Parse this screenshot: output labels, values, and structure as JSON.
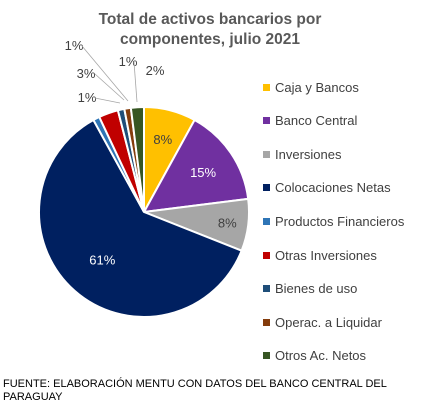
{
  "chart_data": {
    "type": "pie",
    "title_lines": [
      "Total de activos bancarios por",
      "componentes, julio 2021"
    ],
    "slices": [
      {
        "label": "Caja y Bancos",
        "value": 8,
        "value_label": "8%",
        "color": "#FFC000"
      },
      {
        "label": "Banco Central",
        "value": 15,
        "value_label": "15%",
        "color": "#7030A0"
      },
      {
        "label": "Inversiones",
        "value": 8,
        "value_label": "8%",
        "color": "#A6A6A6"
      },
      {
        "label": "Colocaciones Netas",
        "value": 61,
        "value_label": "61%",
        "color": "#002060"
      },
      {
        "label": "Productos Financieros",
        "value": 1,
        "value_label": "1%",
        "color": "#2E75B6"
      },
      {
        "label": "Otras Inversiones",
        "value": 3,
        "value_label": "3%",
        "color": "#C00000"
      },
      {
        "label": "Bienes de uso",
        "value": 1,
        "value_label": "1%",
        "color": "#1F4E79"
      },
      {
        "label": "Operac. a Liquidar",
        "value": 1,
        "value_label": "1%",
        "color": "#843C0C"
      },
      {
        "label": "Otros Ac. Netos",
        "value": 2,
        "value_label": "2%",
        "color": "#375623"
      }
    ],
    "legend_position": "right"
  },
  "source_note": "FUENTE: ELABORACIÓN MENTU CON DATOS DEL BANCO CENTRAL DEL PARAGUAY"
}
